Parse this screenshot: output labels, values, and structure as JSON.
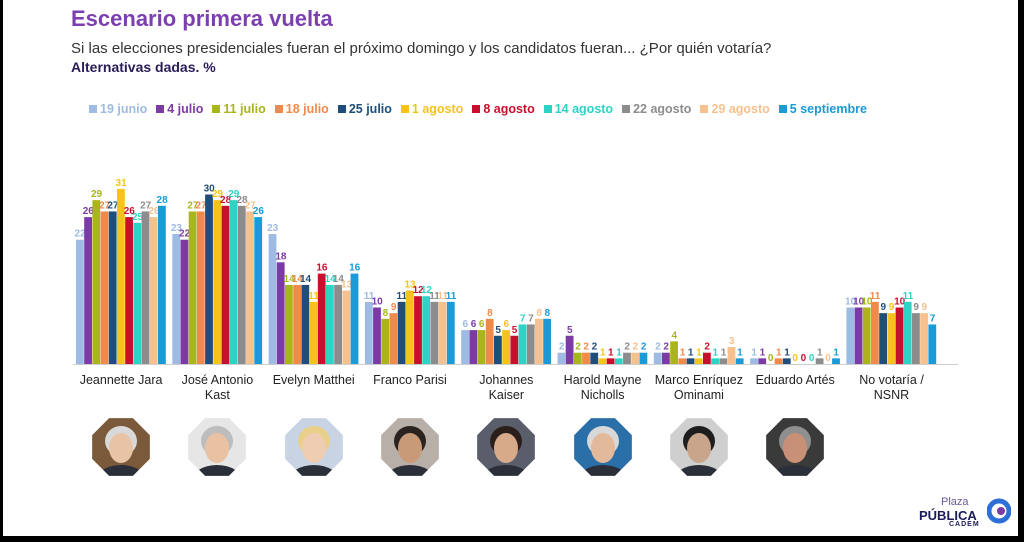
{
  "header": {
    "title": "Escenario primera vuelta",
    "subtitle": "Si las elecciones presidenciales fueran el próximo domingo y los candidatos fueran... ¿Por quién votaría?",
    "note": "Alternativas dadas. %"
  },
  "chart_data": {
    "type": "bar",
    "categories": [
      "Jeannette Jara",
      "José Antonio Kast",
      "Evelyn Matthei",
      "Franco Parisi",
      "Johannes Kaiser",
      "Harold Mayne Nicholls",
      "Marco Enríquez Ominami",
      "Eduardo Artés",
      "No votaría / NSNR"
    ],
    "category_lines": [
      [
        "Jeannette Jara"
      ],
      [
        "José Antonio",
        "Kast"
      ],
      [
        "Evelyn Matthei"
      ],
      [
        "Franco Parisi"
      ],
      [
        "Johannes",
        "Kaiser"
      ],
      [
        "Harold Mayne",
        "Nicholls"
      ],
      [
        "Marco Enríquez",
        "Ominami"
      ],
      [
        "Eduardo Artés"
      ],
      [
        "No votaría /",
        "NSNR"
      ]
    ],
    "ylim": [
      0,
      35
    ],
    "grid": false,
    "legend_position": "top",
    "series": [
      {
        "name": "19 junio",
        "color": "#9dbbe3",
        "values": [
          22,
          23,
          23,
          11,
          6,
          2,
          2,
          1,
          10
        ]
      },
      {
        "name": "4 julio",
        "color": "#7b3aa6",
        "values": [
          26,
          22,
          18,
          10,
          6,
          5,
          2,
          1,
          10
        ]
      },
      {
        "name": "11 julio",
        "color": "#a9b51b",
        "values": [
          29,
          27,
          14,
          8,
          6,
          2,
          4,
          0,
          10
        ]
      },
      {
        "name": "18 julio",
        "color": "#f08a4b",
        "values": [
          27,
          27,
          14,
          9,
          8,
          2,
          1,
          1,
          11
        ]
      },
      {
        "name": "25 julio",
        "color": "#1f4e7a",
        "values": [
          27,
          30,
          14,
          11,
          5,
          2,
          1,
          1,
          9
        ]
      },
      {
        "name": "1 agosto",
        "color": "#f5c31c",
        "values": [
          31,
          29,
          11,
          13,
          6,
          1,
          1,
          0,
          9
        ]
      },
      {
        "name": "8 agosto",
        "color": "#c8102e",
        "values": [
          26,
          28,
          16,
          12,
          5,
          1,
          2,
          0,
          10
        ]
      },
      {
        "name": "14 agosto",
        "color": "#2ed3c6",
        "values": [
          25,
          29,
          14,
          12,
          7,
          1,
          1,
          0,
          11
        ]
      },
      {
        "name": "22 agosto",
        "color": "#8c8c8c",
        "values": [
          27,
          28,
          14,
          11,
          7,
          2,
          1,
          1,
          9
        ]
      },
      {
        "name": "29 agosto",
        "color": "#f6c08f",
        "values": [
          26,
          27,
          13,
          11,
          8,
          2,
          3,
          0,
          9
        ]
      },
      {
        "name": "5 septiembre",
        "color": "#1a9ad6",
        "values": [
          28,
          26,
          16,
          11,
          8,
          2,
          1,
          1,
          7
        ]
      }
    ]
  },
  "photos": [
    {
      "name": "jara",
      "skin": "#e8c3a6",
      "hair": "#d9d9d9",
      "bg": "#7a5a3a"
    },
    {
      "name": "kast",
      "skin": "#e9c2a4",
      "hair": "#bdbdbd",
      "bg": "#e6e6e6"
    },
    {
      "name": "matthei",
      "skin": "#efcdb3",
      "hair": "#e8cf8a",
      "bg": "#c8d3e3"
    },
    {
      "name": "parisi",
      "skin": "#c99a78",
      "hair": "#2a2320",
      "bg": "#b8b0a8"
    },
    {
      "name": "kaiser",
      "skin": "#d7aa8a",
      "hair": "#2a1f1a",
      "bg": "#5a5e6a"
    },
    {
      "name": "mayne-nicholls",
      "skin": "#e3b99b",
      "hair": "#d8d8d8",
      "bg": "#2a6fa8"
    },
    {
      "name": "enriquez-ominami",
      "skin": "#c9a58c",
      "hair": "#1e1e1e",
      "bg": "#cfcfcf"
    },
    {
      "name": "artes",
      "skin": "#c99078",
      "hair": "#8f8f8f",
      "bg": "#3a3a3a"
    }
  ],
  "logo": {
    "top": "Plaza",
    "mid": "PÚBLICA",
    "bottom": "CADEM",
    "accent": "#2d6fd6"
  }
}
